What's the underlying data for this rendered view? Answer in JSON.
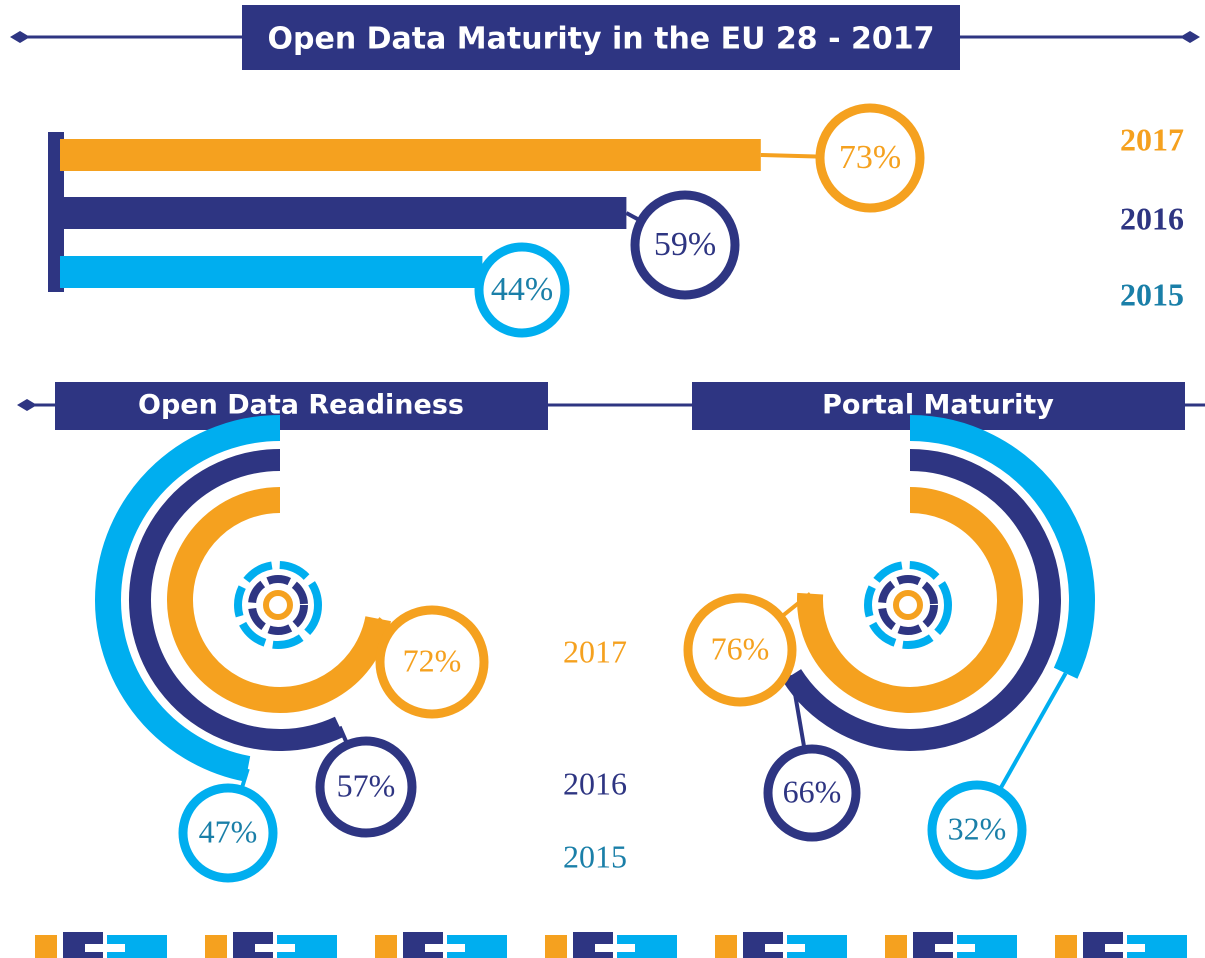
{
  "chart_data": [
    {
      "type": "hbar",
      "title": "Open Data Maturity in the EU 28 - 2017",
      "categories": [
        "2017",
        "2016",
        "2015"
      ],
      "values": [
        73,
        59,
        44
      ],
      "value_labels": [
        "73%",
        "59%",
        "44%"
      ],
      "colors": [
        "#f5a11f",
        "#2e3582",
        "#00aeef"
      ],
      "label_colors": [
        "#f5a11f",
        "#2e3582",
        "#1a7fa8"
      ]
    },
    {
      "type": "radial",
      "title": "Open Data Readiness",
      "categories": [
        "2017",
        "2016",
        "2015"
      ],
      "values": [
        72,
        57,
        47
      ],
      "value_labels": [
        "72%",
        "57%",
        "47%"
      ],
      "colors": [
        "#f5a11f",
        "#2e3582",
        "#00aeef"
      ],
      "label_colors": [
        "#f5a11f",
        "#2e3582",
        "#1a7fa8"
      ]
    },
    {
      "type": "radial",
      "title": "Portal Maturity",
      "categories": [
        "2017",
        "2016",
        "2015"
      ],
      "values": [
        76,
        66,
        32
      ],
      "value_labels": [
        "76%",
        "66%",
        "32%"
      ],
      "colors": [
        "#f5a11f",
        "#2e3582",
        "#00aeef"
      ],
      "label_colors": [
        "#f5a11f",
        "#2e3582",
        "#1a7fa8"
      ]
    }
  ]
}
